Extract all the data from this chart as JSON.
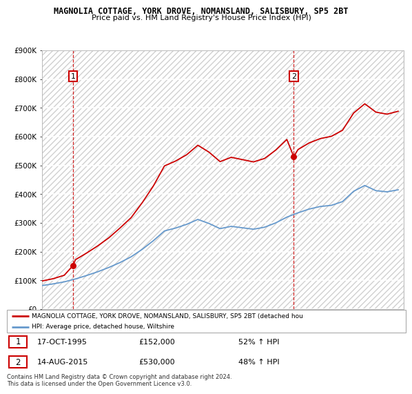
{
  "title": "MAGNOLIA COTTAGE, YORK DROVE, NOMANSLAND, SALISBURY, SP5 2BT",
  "subtitle": "Price paid vs. HM Land Registry's House Price Index (HPI)",
  "legend_line1": "MAGNOLIA COTTAGE, YORK DROVE, NOMANSLAND, SALISBURY, SP5 2BT (detached hou",
  "legend_line2": "HPI: Average price, detached house, Wiltshire",
  "purchase1_date": "17-OCT-1995",
  "purchase1_price": 152000,
  "purchase1_label": "52% ↑ HPI",
  "purchase2_date": "14-AUG-2015",
  "purchase2_price": 530000,
  "purchase2_label": "48% ↑ HPI",
  "footnote": "Contains HM Land Registry data © Crown copyright and database right 2024.\nThis data is licensed under the Open Government Licence v3.0.",
  "red_color": "#cc0000",
  "blue_color": "#6699cc",
  "ylim": [
    0,
    900000
  ],
  "xlim_start": 1993.0,
  "xlim_end": 2025.5,
  "years_blue": [
    1993,
    1994,
    1995,
    1996,
    1997,
    1998,
    1999,
    2000,
    2001,
    2002,
    2003,
    2004,
    2005,
    2006,
    2007,
    2008,
    2009,
    2010,
    2011,
    2012,
    2013,
    2014,
    2015,
    2016,
    2017,
    2018,
    2019,
    2020,
    2021,
    2022,
    2023,
    2024,
    2025
  ],
  "values_blue": [
    82000,
    88000,
    95000,
    105000,
    117000,
    130000,
    145000,
    162000,
    182000,
    208000,
    238000,
    272000,
    282000,
    295000,
    312000,
    298000,
    280000,
    288000,
    283000,
    278000,
    285000,
    300000,
    320000,
    335000,
    348000,
    357000,
    361000,
    374000,
    410000,
    430000,
    412000,
    408000,
    415000
  ],
  "years_red": [
    1993.0,
    1994.0,
    1995.0,
    1995.79,
    1996,
    1997,
    1998,
    1999,
    2000,
    2001,
    2002,
    2003,
    2004,
    2005,
    2006,
    2007,
    2008,
    2009,
    2010,
    2011,
    2012,
    2013,
    2014,
    2015.0,
    2015.62,
    2016,
    2017,
    2018,
    2019,
    2020,
    2021,
    2022,
    2023,
    2024,
    2025
  ],
  "values_red": [
    98000,
    106000,
    118000,
    152000,
    172000,
    195000,
    220000,
    248000,
    282000,
    318000,
    370000,
    428000,
    498000,
    515000,
    537000,
    570000,
    546000,
    513000,
    528000,
    520000,
    512000,
    524000,
    553000,
    590000,
    530000,
    555000,
    578000,
    593000,
    601000,
    622000,
    682000,
    714000,
    685000,
    678000,
    688000
  ]
}
